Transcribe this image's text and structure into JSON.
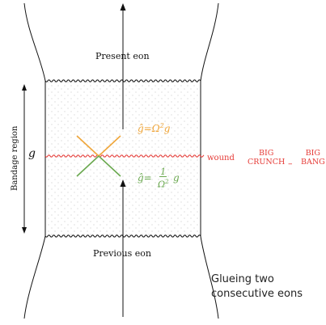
{
  "labels": {
    "present_eon": "Present eon",
    "previous_eon": "Previous eon",
    "bandage_region": "Bandage region",
    "metric_g": "g",
    "wound": "wound",
    "big_crunch_top": "BIG",
    "big_crunch_bottom": "CRUNCH",
    "dash": "–",
    "big_bang_top": "BIG",
    "big_bang_bottom": "BANG",
    "glueing_line1": "Glueing two",
    "glueing_line2": "consecutive eons"
  },
  "equations": {
    "upper_lhs": "ĝ=Ω",
    "upper_exp": "2",
    "upper_rhs": "g",
    "lower_lhs": "ĝ=",
    "lower_num": "1",
    "lower_den_base": "Ω",
    "lower_den_exp": "2",
    "lower_rhs": "g"
  },
  "colors": {
    "ink": "#111111",
    "wound": "#e53935",
    "future_cone": "#f0a63a",
    "past_cone": "#6aa84f",
    "dots": "#c9c9c9"
  }
}
